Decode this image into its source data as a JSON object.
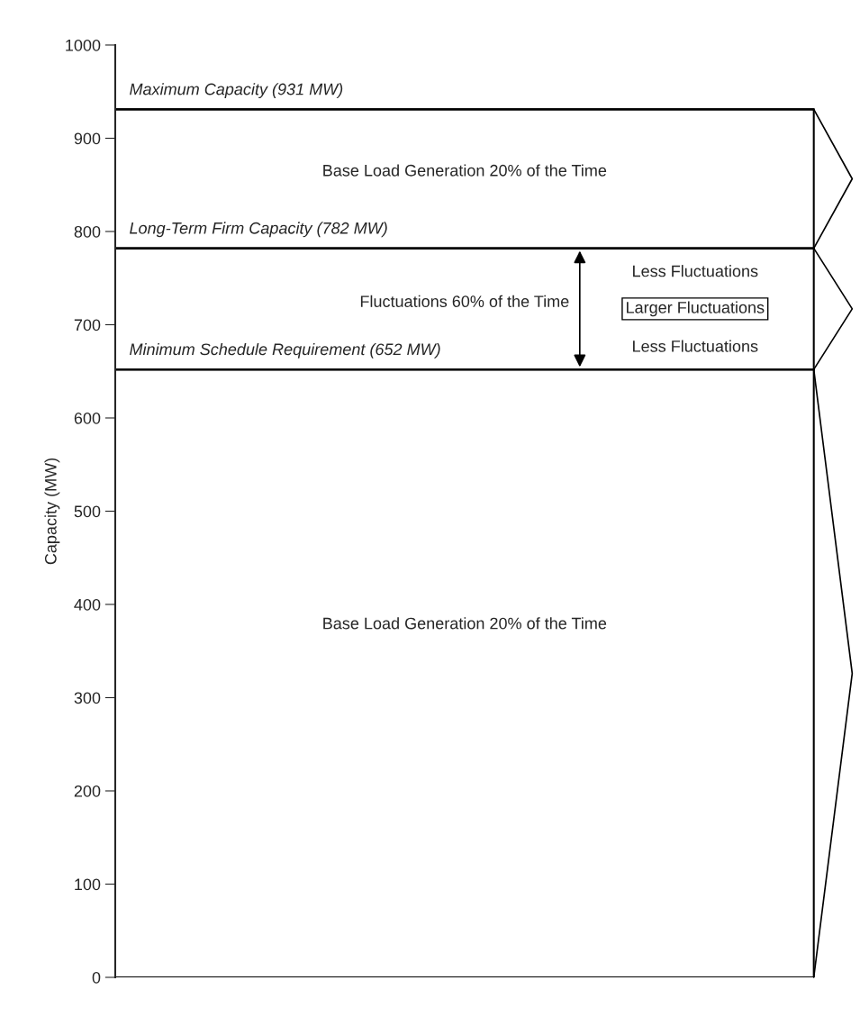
{
  "chart_data": {
    "type": "bar",
    "stacked": true,
    "categories": [
      null
    ],
    "series": [
      {
        "color": "#ffffff",
        "values": [
          652
        ]
      },
      {
        "color": "#ffffff",
        "values": [
          130
        ]
      },
      {
        "color": "#ffffff",
        "values": [
          149
        ]
      }
    ],
    "ylabel": "Capacity (MW)",
    "ylim": [
      0,
      1000
    ],
    "yticks": [
      0,
      100,
      200,
      300,
      400,
      500,
      600,
      700,
      800,
      900,
      1000
    ],
    "grid": false,
    "tick_labels": "y",
    "ref_lines": [
      {
        "axis": "y",
        "value": 931,
        "label": "Maximum Capacity (931 MW)"
      },
      {
        "axis": "y",
        "value": 782,
        "label": "Long-Term Firm Capacity (782 MW)"
      },
      {
        "axis": "y",
        "value": 652,
        "label": "Minimum Schedule Requirement (652 MW)"
      }
    ],
    "annotations": [
      "Base Load Generation 20% of the Time",
      "Fluctuations 60% of the Time",
      "Base Load Generation 20% of the Time",
      "Less Fluctuations",
      "Larger Fluctuations",
      "Less Fluctuations"
    ]
  }
}
